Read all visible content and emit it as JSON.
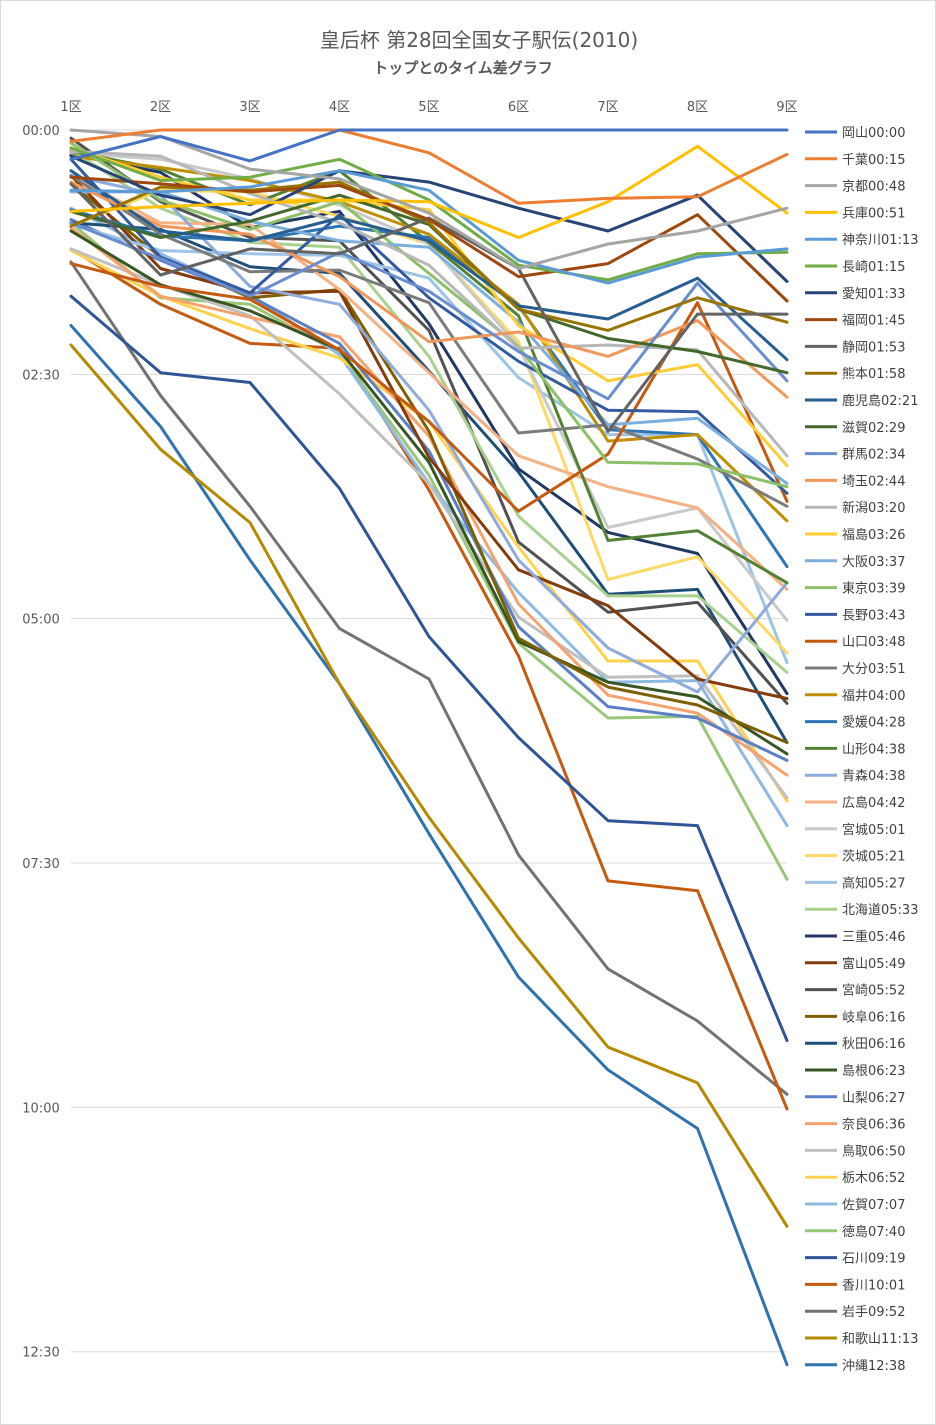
{
  "chart_data": {
    "type": "line",
    "title": "皇后杯 第28回全国女子駅伝(2010)",
    "subtitle": "トップとのタイム差グラフ",
    "x_position": "top",
    "y_reversed": true,
    "ylim": [
      0,
      760
    ],
    "grid": true,
    "legend_position": "right",
    "categories": [
      "1区",
      "2区",
      "3区",
      "4区",
      "5区",
      "6区",
      "7区",
      "8区",
      "9区"
    ],
    "y_ticks": [
      {
        "value": 0,
        "label": "00:00"
      },
      {
        "value": 150,
        "label": "02:30"
      },
      {
        "value": 300,
        "label": "05:00"
      },
      {
        "value": 450,
        "label": "07:30"
      },
      {
        "value": 600,
        "label": "10:00"
      },
      {
        "value": 750,
        "label": "12:30"
      }
    ],
    "series": [
      {
        "name": "岡山00:00",
        "color": "#4472c4",
        "values": [
          18,
          4,
          19,
          0,
          0,
          0,
          0,
          0,
          0
        ]
      },
      {
        "name": "千葉00:15",
        "color": "#ed7d31",
        "values": [
          7,
          0,
          0,
          0,
          14,
          45,
          42,
          41,
          15
        ]
      },
      {
        "name": "京都00:48",
        "color": "#a5a5a5",
        "values": [
          0,
          4,
          24,
          30,
          51,
          85,
          70,
          62,
          48
        ]
      },
      {
        "name": "兵庫00:51",
        "color": "#ffc000",
        "values": [
          50,
          47,
          45,
          43,
          44,
          66,
          44,
          10,
          51
        ]
      },
      {
        "name": "神奈川01:13",
        "color": "#5b9bd5",
        "values": [
          37,
          38,
          35,
          25,
          37,
          80,
          94,
          78,
          73
        ]
      },
      {
        "name": "長崎01:15",
        "color": "#70ad47",
        "values": [
          11,
          31,
          29,
          18,
          43,
          83,
          92,
          76,
          75
        ]
      },
      {
        "name": "愛知01:33",
        "color": "#264478",
        "values": [
          16,
          40,
          52,
          25,
          32,
          48,
          62,
          40,
          93
        ]
      },
      {
        "name": "福岡01:45",
        "color": "#9e480e",
        "values": [
          29,
          33,
          38,
          34,
          55,
          90,
          82,
          52,
          105
        ]
      },
      {
        "name": "静岡01:53",
        "color": "#636363",
        "values": [
          33,
          89,
          73,
          76,
          54,
          85,
          185,
          113,
          113
        ]
      },
      {
        "name": "熊本01:58",
        "color": "#997300",
        "values": [
          59,
          35,
          37,
          32,
          57,
          110,
          123,
          103,
          118
        ]
      },
      {
        "name": "鹿児島02:21",
        "color": "#255e91",
        "values": [
          25,
          62,
          68,
          54,
          68,
          108,
          116,
          91,
          141
        ]
      },
      {
        "name": "滋賀02:29",
        "color": "#43682b",
        "values": [
          50,
          66,
          56,
          40,
          58,
          110,
          128,
          136,
          149
        ]
      },
      {
        "name": "群馬02:34",
        "color": "#698ed0",
        "values": [
          57,
          79,
          102,
          75,
          99,
          136,
          165,
          94,
          154
        ]
      },
      {
        "name": "埼玉02:44",
        "color": "#f1975a",
        "values": [
          32,
          59,
          64,
          90,
          130,
          124,
          139,
          117,
          164
        ]
      },
      {
        "name": "新潟03:20",
        "color": "#b7b7b7",
        "values": [
          13,
          16,
          39,
          57,
          83,
          134,
          132,
          135,
          200
        ]
      },
      {
        "name": "福島03:26",
        "color": "#ffcd33",
        "values": [
          11,
          29,
          43,
          43,
          49,
          120,
          154,
          144,
          206
        ]
      },
      {
        "name": "大阪03:37",
        "color": "#7cafdd",
        "values": [
          38,
          38,
          56,
          68,
          72,
          118,
          181,
          177,
          217
        ]
      },
      {
        "name": "東京03:39",
        "color": "#8cc168",
        "values": [
          8,
          43,
          61,
          44,
          88,
          133,
          204,
          205,
          219
        ]
      },
      {
        "name": "長野03:43",
        "color": "#335aa1",
        "values": [
          18,
          78,
          100,
          52,
          103,
          142,
          172,
          173,
          223
        ]
      },
      {
        "name": "山口03:48",
        "color": "#c65911",
        "values": [
          82,
          96,
          104,
          135,
          179,
          234,
          199,
          106,
          228
        ]
      },
      {
        "name": "大分03:51",
        "color": "#7b7b7b",
        "values": [
          28,
          64,
          87,
          86,
          106,
          186,
          181,
          202,
          231
        ]
      },
      {
        "name": "福井04:00",
        "color": "#bf8f00",
        "values": [
          16,
          23,
          31,
          44,
          64,
          107,
          191,
          187,
          240
        ]
      },
      {
        "name": "愛媛04:28",
        "color": "#2e75b6",
        "values": [
          49,
          65,
          68,
          59,
          66,
          108,
          184,
          187,
          268
        ]
      },
      {
        "name": "山形04:38",
        "color": "#548235",
        "values": [
          13,
          24,
          46,
          25,
          69,
          114,
          252,
          246,
          278
        ]
      },
      {
        "name": "青森04:38",
        "color": "#8faadc",
        "values": [
          28,
          40,
          96,
          107,
          172,
          264,
          318,
          345,
          278
        ]
      },
      {
        "name": "広島04:42",
        "color": "#f4b183",
        "values": [
          28,
          57,
          58,
          98,
          149,
          200,
          219,
          232,
          282
        ]
      },
      {
        "name": "宮城05:01",
        "color": "#c9c9c9",
        "values": [
          14,
          18,
          30,
          46,
          70,
          133,
          244,
          232,
          301
        ]
      },
      {
        "name": "茨城05:21",
        "color": "#ffd966",
        "values": [
          59,
          37,
          38,
          53,
          70,
          130,
          276,
          262,
          321
        ]
      },
      {
        "name": "高知05:27",
        "color": "#9dc3e6",
        "values": [
          58,
          74,
          76,
          77,
          91,
          152,
          187,
          187,
          327
        ]
      },
      {
        "name": "北海道05:33",
        "color": "#a9d18e",
        "values": [
          12,
          48,
          69,
          72,
          139,
          237,
          286,
          286,
          333
        ]
      },
      {
        "name": "三重05:46",
        "color": "#203864",
        "values": [
          15,
          26,
          60,
          50,
          119,
          208,
          247,
          260,
          346
        ]
      },
      {
        "name": "富山05:49",
        "color": "#843c0c",
        "values": [
          28,
          85,
          100,
          99,
          201,
          270,
          292,
          337,
          349
        ]
      },
      {
        "name": "宮崎05:52",
        "color": "#525252",
        "values": [
          5,
          44,
          66,
          68,
          123,
          253,
          296,
          290,
          352
        ]
      },
      {
        "name": "岐阜06:16",
        "color": "#7f6000",
        "values": [
          33,
          78,
          103,
          98,
          185,
          312,
          342,
          353,
          376
        ]
      },
      {
        "name": "秋田06:16",
        "color": "#1f4e79",
        "values": [
          57,
          61,
          84,
          88,
          148,
          210,
          285,
          282,
          376
        ]
      },
      {
        "name": "島根06:23",
        "color": "#375623",
        "values": [
          62,
          95,
          111,
          135,
          204,
          314,
          339,
          348,
          383
        ]
      },
      {
        "name": "山梨06:27",
        "color": "#5b7fc7",
        "values": [
          55,
          80,
          102,
          131,
          197,
          305,
          354,
          361,
          387
        ]
      },
      {
        "name": "奈良06:36",
        "color": "#f5a26e",
        "values": [
          60,
          102,
          115,
          127,
          188,
          291,
          347,
          358,
          396
        ]
      },
      {
        "name": "鳥取06:50",
        "color": "#bfbfbf",
        "values": [
          73,
          95,
          114,
          162,
          217,
          299,
          336,
          335,
          410
        ]
      },
      {
        "name": "栃木06:52",
        "color": "#ffd24d",
        "values": [
          74,
          102,
          122,
          140,
          179,
          256,
          326,
          326,
          412
        ]
      },
      {
        "name": "佐賀07:07",
        "color": "#8eb9e2",
        "values": [
          48,
          76,
          101,
          138,
          217,
          284,
          339,
          338,
          427
        ]
      },
      {
        "name": "徳島07:40",
        "color": "#99c77a",
        "values": [
          57,
          103,
          107,
          137,
          212,
          315,
          361,
          360,
          460
        ]
      },
      {
        "name": "石川09:19",
        "color": "#2f5597",
        "values": [
          102,
          149,
          155,
          220,
          311,
          373,
          424,
          427,
          559
        ]
      },
      {
        "name": "香川10:01",
        "color": "#c55a11",
        "values": [
          73,
          107,
          131,
          134,
          221,
          323,
          461,
          467,
          601
        ]
      },
      {
        "name": "岩手09:52",
        "color": "#767171",
        "values": [
          81,
          163,
          231,
          306,
          337,
          445,
          515,
          547,
          592
        ]
      },
      {
        "name": "和歌山11:13",
        "color": "#b58a00",
        "values": [
          132,
          196,
          241,
          340,
          422,
          496,
          563,
          585,
          673
        ]
      },
      {
        "name": "沖縄12:38",
        "color": "#2f72b0",
        "values": [
          120,
          182,
          264,
          340,
          432,
          520,
          577,
          613,
          758
        ]
      }
    ]
  }
}
